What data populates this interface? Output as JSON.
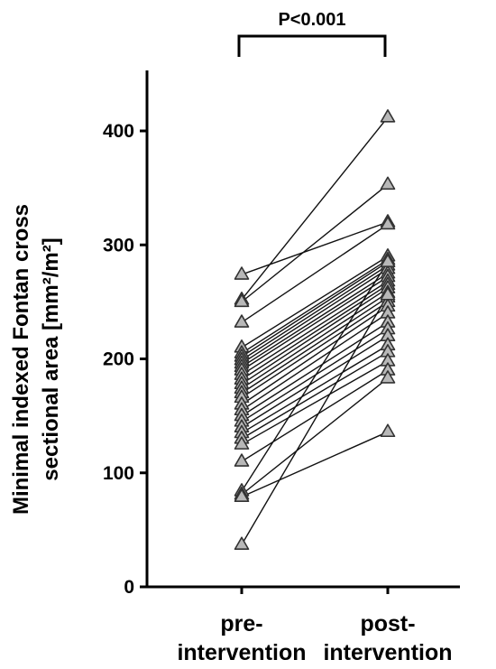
{
  "chart_data": {
    "type": "line",
    "categories": [
      "pre-\nintervention",
      "post-\nintervention"
    ],
    "ylabel_lines": [
      "Minimal indexed Fontan cross",
      "sectional area [mm²/m²]"
    ],
    "ylim": [
      0,
      450
    ],
    "yticks": [
      0,
      100,
      200,
      300,
      400
    ],
    "annotation": "P<0.001",
    "marker_color": "#b8b8b8",
    "line_color": "#111111",
    "pairs": [
      {
        "pre": 274,
        "post": 320
      },
      {
        "pre": 252,
        "post": 412
      },
      {
        "pre": 250,
        "post": 353
      },
      {
        "pre": 232,
        "post": 318
      },
      {
        "pre": 210,
        "post": 290
      },
      {
        "pre": 205,
        "post": 287
      },
      {
        "pre": 202,
        "post": 285
      },
      {
        "pre": 199,
        "post": 282
      },
      {
        "pre": 196,
        "post": 279
      },
      {
        "pre": 193,
        "post": 275
      },
      {
        "pre": 190,
        "post": 272
      },
      {
        "pre": 186,
        "post": 268
      },
      {
        "pre": 182,
        "post": 265
      },
      {
        "pre": 178,
        "post": 262
      },
      {
        "pre": 174,
        "post": 258
      },
      {
        "pre": 170,
        "post": 254
      },
      {
        "pre": 166,
        "post": 250
      },
      {
        "pre": 160,
        "post": 246
      },
      {
        "pre": 155,
        "post": 240
      },
      {
        "pre": 150,
        "post": 232
      },
      {
        "pre": 145,
        "post": 226
      },
      {
        "pre": 140,
        "post": 220
      },
      {
        "pre": 135,
        "post": 212
      },
      {
        "pre": 130,
        "post": 206
      },
      {
        "pre": 125,
        "post": 198
      },
      {
        "pre": 110,
        "post": 190
      },
      {
        "pre": 84,
        "post": 285
      },
      {
        "pre": 81,
        "post": 183
      },
      {
        "pre": 79,
        "post": 136
      },
      {
        "pre": 37,
        "post": 256
      }
    ]
  }
}
